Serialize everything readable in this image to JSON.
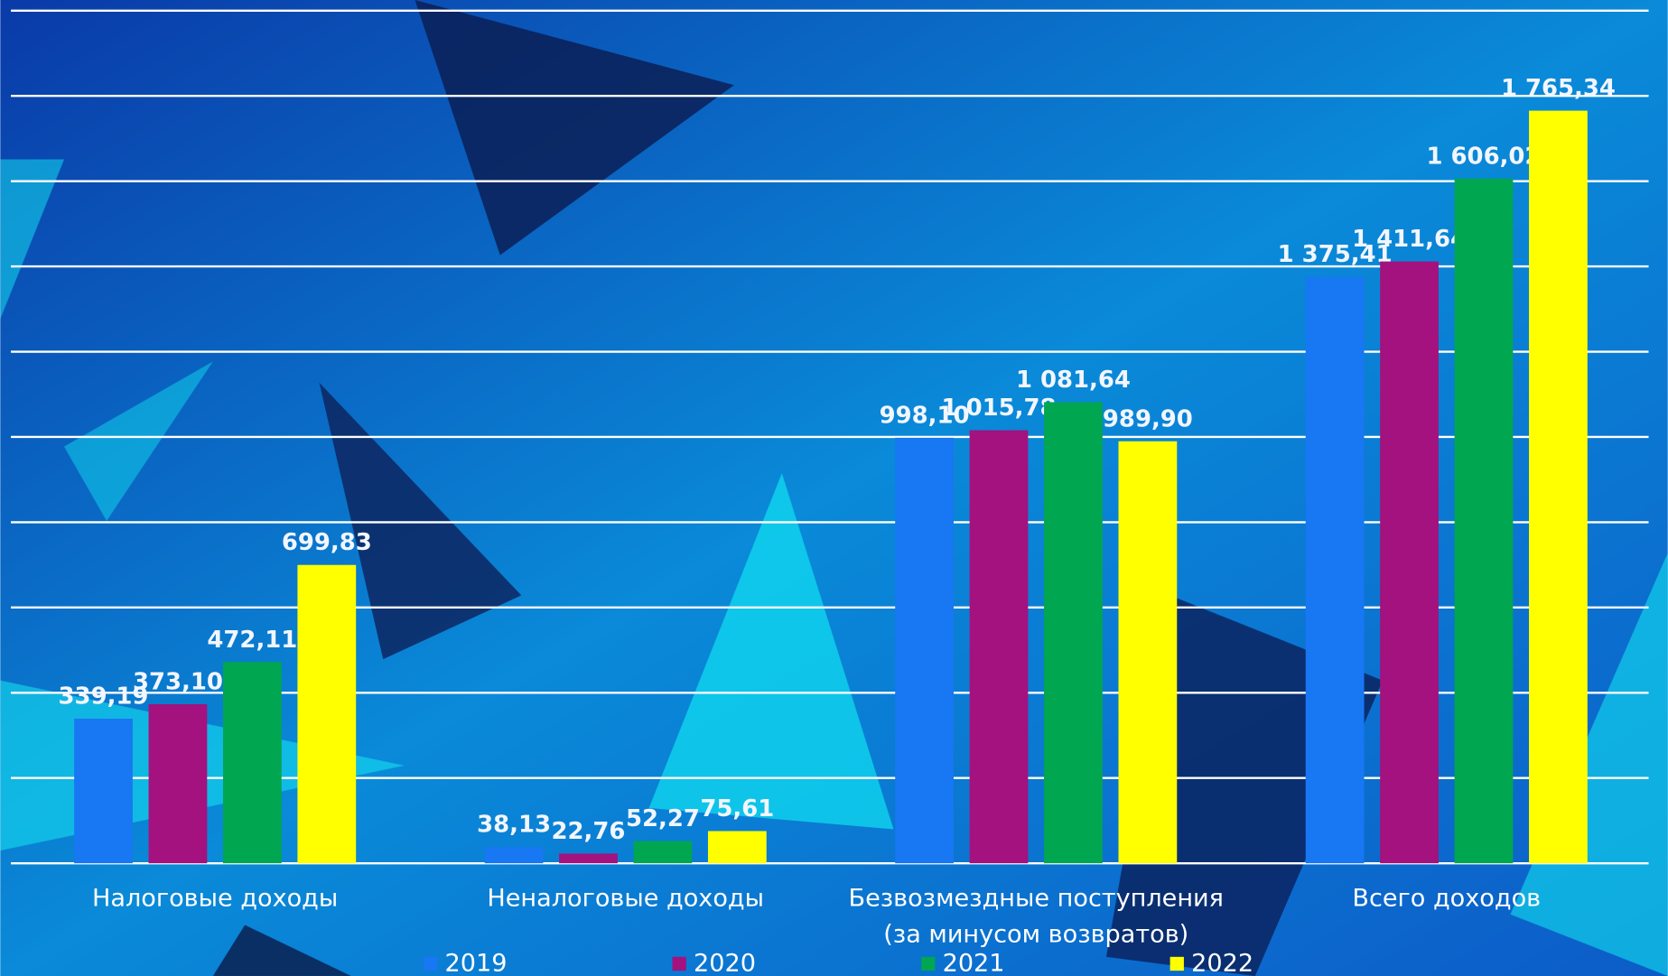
{
  "chart_data": {
    "type": "bar",
    "categories": [
      "Налоговые доходы",
      "Неналоговые доходы",
      "Безвозмездные поступления (за минусом возвратов)",
      "Всего доходов"
    ],
    "series": [
      {
        "name": "2019",
        "color": "#1877f2",
        "values": [
          339.19,
          38.13,
          998.1,
          1375.41
        ],
        "value_labels": [
          "339,19",
          "38,13",
          "998,10",
          "1 375,41"
        ]
      },
      {
        "name": "2020",
        "color": "#a3127e",
        "values": [
          373.1,
          22.76,
          1015.78,
          1411.64
        ],
        "value_labels": [
          "373,10",
          "22,76",
          "1 015,78",
          "1 411,64"
        ]
      },
      {
        "name": "2021",
        "color": "#00a650",
        "values": [
          472.11,
          52.27,
          1081.64,
          1606.02
        ],
        "value_labels": [
          "472,11",
          "52,27",
          "1 081,64",
          "1 606,02"
        ]
      },
      {
        "name": "2022",
        "color": "#ffff00",
        "values": [
          699.83,
          75.61,
          989.9,
          1765.34
        ],
        "value_labels": [
          "699,83",
          "75,61",
          "989,90",
          "1 765,34"
        ]
      }
    ],
    "ylim": [
      0,
      2000
    ],
    "yticks": [
      0,
      200,
      400,
      600,
      800,
      1000,
      1200,
      1400,
      1600,
      1800,
      2000
    ],
    "grid": true
  }
}
